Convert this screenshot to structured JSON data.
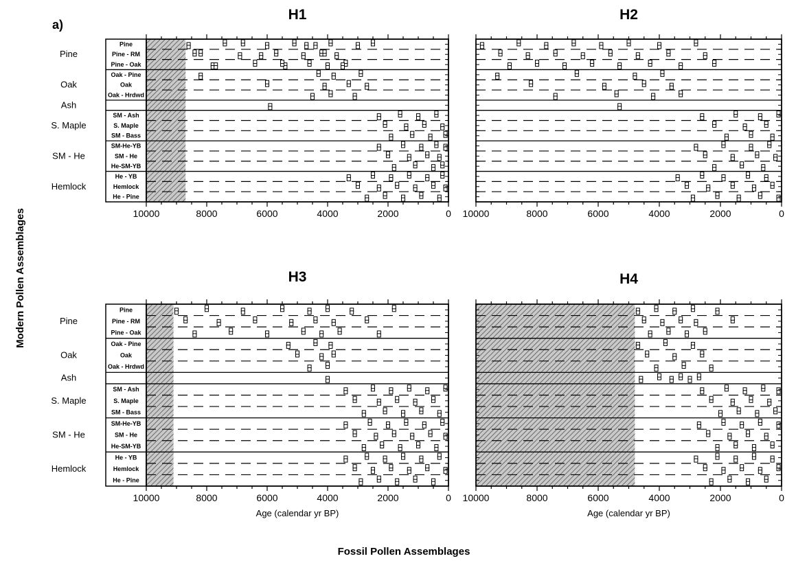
{
  "figure": {
    "panel_letter": "a)",
    "y_title": "Modern Pollen Assemblages",
    "x_title": "Fossil Pollen Assemblages",
    "pattern_color": "#777777"
  },
  "chart_data": [
    {
      "type": "scatter",
      "title": "H1",
      "xlabel": "",
      "xlim": [
        10000,
        0
      ],
      "x_ticks": [
        "10000",
        "8000",
        "6000",
        "4000",
        "2000",
        "0"
      ],
      "shaded_x_range": [
        10000,
        8700
      ],
      "groups": [
        {
          "name": "Pine",
          "subtypes": [
            "Pine",
            "Pine - RM",
            "Pine - Oak"
          ]
        },
        {
          "name": "Oak",
          "subtypes": [
            "Oak - Pine",
            "Oak",
            "Oak - Hrdwd"
          ]
        },
        {
          "name": "Ash",
          "subtypes": [
            ""
          ]
        },
        {
          "name": "S. Maple",
          "subtypes": [
            "SM - Ash",
            "S. Maple",
            "SM - Bass"
          ]
        },
        {
          "name": "SM - He",
          "subtypes": [
            "SM-He-YB",
            "SM - He",
            "He-SM-YB"
          ]
        },
        {
          "name": "Hemlock",
          "subtypes": [
            "He - YB",
            "Hemlock",
            "He - Pine"
          ]
        }
      ],
      "series": [
        {
          "group": "Pine",
          "x": [
            8600,
            8200,
            7800,
            7400,
            6900,
            6400,
            6000,
            5700,
            5400,
            5100,
            4800,
            4600,
            4400,
            4200,
            4000,
            3900,
            3700,
            3400,
            3000,
            8400,
            7700,
            6800,
            6200,
            5500,
            4700,
            4100,
            3500,
            2500
          ]
        },
        {
          "group": "Oak",
          "x": [
            8200,
            6000,
            4500,
            4300,
            4100,
            3900,
            3800,
            3300,
            3100,
            2900,
            2700
          ]
        },
        {
          "group": "Ash",
          "x": [
            5900
          ]
        },
        {
          "group": "S. Maple",
          "x": [
            2300,
            2100,
            1900,
            1600,
            1400,
            1200,
            1000,
            800,
            600,
            400,
            200,
            100
          ]
        },
        {
          "group": "SM - He",
          "x": [
            2300,
            2000,
            1800,
            1500,
            1300,
            1100,
            900,
            700,
            500,
            400,
            300,
            200,
            100
          ]
        },
        {
          "group": "Hemlock",
          "x": [
            3300,
            3000,
            2700,
            2500,
            2300,
            2100,
            1900,
            1700,
            1500,
            1300,
            1100,
            900,
            700,
            500,
            300,
            200,
            100
          ]
        }
      ]
    },
    {
      "type": "scatter",
      "title": "H2",
      "xlabel": "",
      "xlim": [
        10000,
        0
      ],
      "x_ticks": [
        "10000",
        "8000",
        "6000",
        "4000",
        "2000",
        "0"
      ],
      "shaded_x_range": null,
      "groups": [
        {
          "name": "Pine",
          "subtypes": [
            "Pine",
            "Pine - RM",
            "Pine - Oak"
          ]
        },
        {
          "name": "Oak",
          "subtypes": [
            "Oak - Pine",
            "Oak",
            "Oak - Hrdwd"
          ]
        },
        {
          "name": "Ash",
          "subtypes": [
            ""
          ]
        },
        {
          "name": "S. Maple",
          "subtypes": [
            "SM - Ash",
            "S. Maple",
            "SM - Bass"
          ]
        },
        {
          "name": "SM - He",
          "subtypes": [
            "SM-He-YB",
            "SM - He",
            "He-SM-YB"
          ]
        },
        {
          "name": "Hemlock",
          "subtypes": [
            "He - YB",
            "Hemlock",
            "He - Pine"
          ]
        }
      ],
      "series": [
        {
          "group": "Pine",
          "x": [
            9800,
            9200,
            8900,
            8600,
            8300,
            8000,
            7700,
            7400,
            7100,
            6800,
            6500,
            6200,
            5900,
            5600,
            5300,
            5000,
            4700,
            4300,
            4000,
            3700,
            3300,
            2800,
            2500,
            2200
          ]
        },
        {
          "group": "Oak",
          "x": [
            9300,
            8200,
            7400,
            6700,
            5800,
            5400,
            4800,
            4500,
            4200,
            3900,
            3600,
            3300
          ]
        },
        {
          "group": "Ash",
          "x": [
            5300
          ]
        },
        {
          "group": "S. Maple",
          "x": [
            2600,
            2200,
            1800,
            1500,
            1200,
            1000,
            700,
            500,
            300,
            100
          ]
        },
        {
          "group": "SM - He",
          "x": [
            2800,
            2500,
            2200,
            1900,
            1600,
            1300,
            1000,
            800,
            600,
            400,
            200
          ]
        },
        {
          "group": "Hemlock",
          "x": [
            3400,
            3100,
            2900,
            2600,
            2400,
            2100,
            1900,
            1600,
            1400,
            1100,
            900,
            700,
            500,
            300,
            100
          ]
        }
      ]
    },
    {
      "type": "scatter",
      "title": "H3",
      "xlabel": "Age (calendar yr BP)",
      "xlim": [
        10000,
        0
      ],
      "x_ticks": [
        "10000",
        "8000",
        "6000",
        "4000",
        "2000",
        "0"
      ],
      "shaded_x_range": [
        10000,
        9100
      ],
      "groups": [
        {
          "name": "Pine",
          "subtypes": [
            "Pine",
            "Pine - RM",
            "Pine - Oak"
          ]
        },
        {
          "name": "Oak",
          "subtypes": [
            "Oak - Pine",
            "Oak",
            "Oak - Hrdwd"
          ]
        },
        {
          "name": "Ash",
          "subtypes": [
            ""
          ]
        },
        {
          "name": "S. Maple",
          "subtypes": [
            "SM - Ash",
            "S. Maple",
            "SM - Bass"
          ]
        },
        {
          "name": "SM - He",
          "subtypes": [
            "SM-He-YB",
            "SM - He",
            "He-SM-YB"
          ]
        },
        {
          "name": "Hemlock",
          "subtypes": [
            "He - YB",
            "Hemlock",
            "He - Pine"
          ]
        }
      ],
      "series": [
        {
          "group": "Pine",
          "x": [
            9000,
            8700,
            8400,
            8000,
            7600,
            7200,
            6800,
            6400,
            6000,
            5500,
            5200,
            4800,
            4600,
            4400,
            4200,
            4000,
            3800,
            3600,
            3200,
            2700,
            2300,
            1800
          ]
        },
        {
          "group": "Oak",
          "x": [
            5300,
            5000,
            4600,
            4400,
            4200,
            4000,
            3900,
            3800
          ]
        },
        {
          "group": "Ash",
          "x": [
            4000
          ]
        },
        {
          "group": "S. Maple",
          "x": [
            3400,
            3100,
            2800,
            2500,
            2300,
            2100,
            1900,
            1700,
            1500,
            1300,
            1100,
            900,
            700,
            500,
            300,
            100
          ]
        },
        {
          "group": "SM - He",
          "x": [
            3400,
            3100,
            2800,
            2600,
            2400,
            2200,
            2000,
            1800,
            1600,
            1400,
            1200,
            1000,
            800,
            600,
            400,
            200,
            100
          ]
        },
        {
          "group": "Hemlock",
          "x": [
            3400,
            3100,
            2900,
            2700,
            2500,
            2300,
            2100,
            1900,
            1700,
            1500,
            1300,
            1100,
            900,
            700,
            500,
            300,
            100
          ]
        }
      ]
    },
    {
      "type": "scatter",
      "title": "H4",
      "xlabel": "Age (calendar yr BP)",
      "xlim": [
        10000,
        0
      ],
      "x_ticks": [
        "10000",
        "8000",
        "6000",
        "4000",
        "2000",
        "0"
      ],
      "shaded_x_range": [
        10000,
        4800
      ],
      "groups": [
        {
          "name": "Pine",
          "subtypes": [
            "Pine",
            "Pine - RM",
            "Pine - Oak"
          ]
        },
        {
          "name": "Oak",
          "subtypes": [
            "Oak - Pine",
            "Oak",
            "Oak - Hrdwd"
          ]
        },
        {
          "name": "Ash",
          "subtypes": [
            ""
          ]
        },
        {
          "name": "S. Maple",
          "subtypes": [
            "SM - Ash",
            "S. Maple",
            "SM - Bass"
          ]
        },
        {
          "name": "SM - He",
          "subtypes": [
            "SM-He-YB",
            "SM - He",
            "He-SM-YB"
          ]
        },
        {
          "name": "Hemlock",
          "subtypes": [
            "He - YB",
            "Hemlock",
            "He - Pine"
          ]
        }
      ],
      "series": [
        {
          "group": "Pine",
          "x": [
            4700,
            4500,
            4300,
            4100,
            3900,
            3700,
            3500,
            3300,
            3100,
            2900,
            2800,
            2500,
            2100,
            1600
          ]
        },
        {
          "group": "Oak",
          "x": [
            4700,
            4400,
            4100,
            3800,
            3500,
            3200,
            2900,
            2600,
            2300
          ]
        },
        {
          "group": "Ash",
          "x": [
            4600,
            4000,
            3600,
            3300,
            3000,
            2700
          ]
        },
        {
          "group": "S. Maple",
          "x": [
            2600,
            2300,
            2000,
            1800,
            1600,
            1400,
            1200,
            1000,
            800,
            600,
            400,
            200,
            100
          ]
        },
        {
          "group": "SM - He",
          "x": [
            2700,
            2400,
            2100,
            1900,
            1700,
            1500,
            1300,
            1100,
            900,
            700,
            500,
            300,
            100
          ]
        },
        {
          "group": "Hemlock",
          "x": [
            2800,
            2500,
            2300,
            2100,
            1900,
            1700,
            1500,
            1300,
            1100,
            900,
            700,
            500,
            300,
            100
          ]
        }
      ]
    }
  ]
}
